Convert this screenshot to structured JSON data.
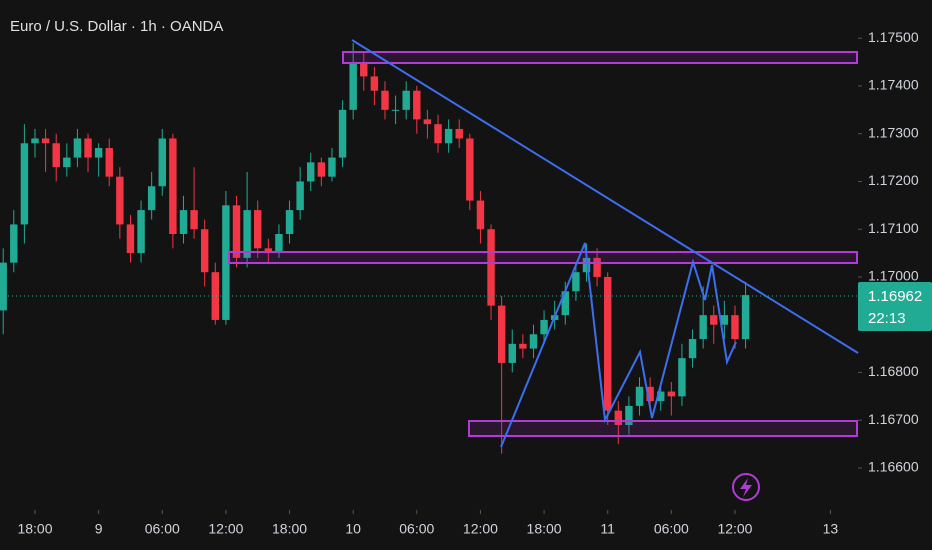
{
  "chart_data": {
    "type": "candlestick",
    "title": "Euro / U.S. Dollar · 1h · OANDA",
    "price_tag": "1.16962",
    "countdown": "22:13",
    "up_color": "#22ab94",
    "down_color": "#f23645",
    "grid": false,
    "xlim": [
      -3.3,
      77.6
    ],
    "ylim": [
      1.16512,
      1.1758
    ],
    "xticks": [
      {
        "value": 0,
        "label": "18:00"
      },
      {
        "value": 6,
        "label": "9"
      },
      {
        "value": 12,
        "label": "06:00"
      },
      {
        "value": 18,
        "label": "12:00"
      },
      {
        "value": 24,
        "label": "18:00"
      },
      {
        "value": 30,
        "label": "10"
      },
      {
        "value": 36,
        "label": "06:00"
      },
      {
        "value": 42,
        "label": "12:00"
      },
      {
        "value": 48,
        "label": "18:00"
      },
      {
        "value": 54,
        "label": "11"
      },
      {
        "value": 60,
        "label": "06:00"
      },
      {
        "value": 66,
        "label": "12:00"
      },
      {
        "value": 75,
        "label": "13"
      }
    ],
    "yticks": [
      {
        "value": 1.175,
        "label": "1.17500"
      },
      {
        "value": 1.174,
        "label": "1.17400"
      },
      {
        "value": 1.173,
        "label": "1.17300"
      },
      {
        "value": 1.172,
        "label": "1.17200"
      },
      {
        "value": 1.171,
        "label": "1.17100"
      },
      {
        "value": 1.17,
        "label": "1.17000"
      },
      {
        "value": 1.169,
        "label": "1.16900"
      },
      {
        "value": 1.168,
        "label": "1.16800"
      },
      {
        "value": 1.167,
        "label": "1.16700"
      },
      {
        "value": 1.166,
        "label": "1.16600"
      }
    ],
    "x": [
      -3,
      -2,
      -1,
      0,
      1,
      2,
      3,
      4,
      5,
      6,
      7,
      8,
      9,
      10,
      11,
      12,
      13,
      14,
      15,
      16,
      17,
      18,
      19,
      20,
      21,
      22,
      23,
      24,
      25,
      26,
      27,
      28,
      29,
      30,
      31,
      32,
      33,
      34,
      35,
      36,
      37,
      38,
      39,
      40,
      41,
      42,
      43,
      44,
      45,
      46,
      47,
      48,
      49,
      50,
      51,
      52,
      53,
      54,
      55,
      56,
      57,
      58,
      59,
      60,
      61,
      62,
      63,
      64,
      65,
      66,
      67
    ],
    "open": [
      1.1693,
      1.1703,
      1.1711,
      1.1728,
      1.1729,
      1.1728,
      1.1723,
      1.1725,
      1.1729,
      1.1725,
      1.1727,
      1.1721,
      1.1711,
      1.1705,
      1.1714,
      1.1719,
      1.1729,
      1.1709,
      1.1714,
      1.171,
      1.1701,
      1.1691,
      1.1715,
      1.1704,
      1.1714,
      1.1706,
      1.1705,
      1.1709,
      1.1714,
      1.172,
      1.1724,
      1.1721,
      1.1725,
      1.1735,
      1.1745,
      1.1742,
      1.1739,
      1.1735,
      1.1735,
      1.1739,
      1.1733,
      1.1732,
      1.1728,
      1.1731,
      1.1729,
      1.1716,
      1.171,
      1.1694,
      1.1682,
      1.1686,
      1.1685,
      1.1688,
      1.1691,
      1.1692,
      1.1697,
      1.1701,
      1.1704,
      1.17,
      1.1672,
      1.1669,
      1.1673,
      1.1677,
      1.1674,
      1.1676,
      1.1675,
      1.1683,
      1.1687,
      1.1692,
      1.169,
      1.1692,
      1.1687
    ],
    "high": [
      1.1706,
      1.1714,
      1.1732,
      1.1731,
      1.1731,
      1.173,
      1.1728,
      1.1731,
      1.173,
      1.1728,
      1.1729,
      1.1723,
      1.1713,
      1.1716,
      1.1722,
      1.1731,
      1.173,
      1.1717,
      1.1723,
      1.1712,
      1.1703,
      1.1718,
      1.1717,
      1.1722,
      1.1716,
      1.1708,
      1.1711,
      1.1716,
      1.1723,
      1.1726,
      1.1725,
      1.1727,
      1.1737,
      1.1749,
      1.1747,
      1.1744,
      1.1741,
      1.1738,
      1.1741,
      1.174,
      1.1735,
      1.1734,
      1.1733,
      1.1733,
      1.173,
      1.1718,
      1.1711,
      1.1696,
      1.1689,
      1.1688,
      1.169,
      1.1693,
      1.1695,
      1.1699,
      1.1703,
      1.1707,
      1.1706,
      1.1701,
      1.1674,
      1.1675,
      1.1679,
      1.1679,
      1.1678,
      1.1678,
      1.1686,
      1.1689,
      1.1698,
      1.1694,
      1.1695,
      1.1694,
      1.1699
    ],
    "low": [
      1.1688,
      1.1701,
      1.1707,
      1.1725,
      1.1722,
      1.172,
      1.1721,
      1.1723,
      1.1722,
      1.1721,
      1.1719,
      1.1708,
      1.1703,
      1.1703,
      1.1712,
      1.1717,
      1.1706,
      1.1707,
      1.1708,
      1.1698,
      1.169,
      1.169,
      1.1702,
      1.1702,
      1.1704,
      1.1703,
      1.1704,
      1.1707,
      1.1712,
      1.1718,
      1.1719,
      1.172,
      1.1723,
      1.1733,
      1.1739,
      1.1736,
      1.1733,
      1.1732,
      1.1733,
      1.173,
      1.1729,
      1.1726,
      1.1726,
      1.1727,
      1.1714,
      1.1707,
      1.1691,
      1.1663,
      1.168,
      1.1683,
      1.1683,
      1.1686,
      1.1689,
      1.169,
      1.1695,
      1.1699,
      1.1698,
      1.1669,
      1.1665,
      1.1667,
      1.1671,
      1.1672,
      1.1672,
      1.1671,
      1.1673,
      1.1681,
      1.1685,
      1.1686,
      1.1687,
      1.1685,
      1.1685
    ],
    "close": [
      1.1703,
      1.1711,
      1.1728,
      1.1729,
      1.1728,
      1.1723,
      1.1725,
      1.1729,
      1.1725,
      1.1727,
      1.1721,
      1.1711,
      1.1705,
      1.1714,
      1.1719,
      1.1729,
      1.1709,
      1.1714,
      1.171,
      1.1701,
      1.1691,
      1.1715,
      1.1704,
      1.1714,
      1.1706,
      1.1705,
      1.1709,
      1.1714,
      1.172,
      1.1724,
      1.1721,
      1.1725,
      1.1735,
      1.1745,
      1.1742,
      1.1739,
      1.1735,
      1.1735,
      1.1739,
      1.1733,
      1.1732,
      1.1728,
      1.1731,
      1.1729,
      1.1716,
      1.171,
      1.1694,
      1.1682,
      1.1686,
      1.1685,
      1.1688,
      1.1691,
      1.1692,
      1.1697,
      1.1701,
      1.1704,
      1.17,
      1.1672,
      1.1669,
      1.1673,
      1.1677,
      1.1674,
      1.1676,
      1.1675,
      1.1683,
      1.1687,
      1.1692,
      1.169,
      1.1692,
      1.1687,
      1.16962
    ]
  }
}
